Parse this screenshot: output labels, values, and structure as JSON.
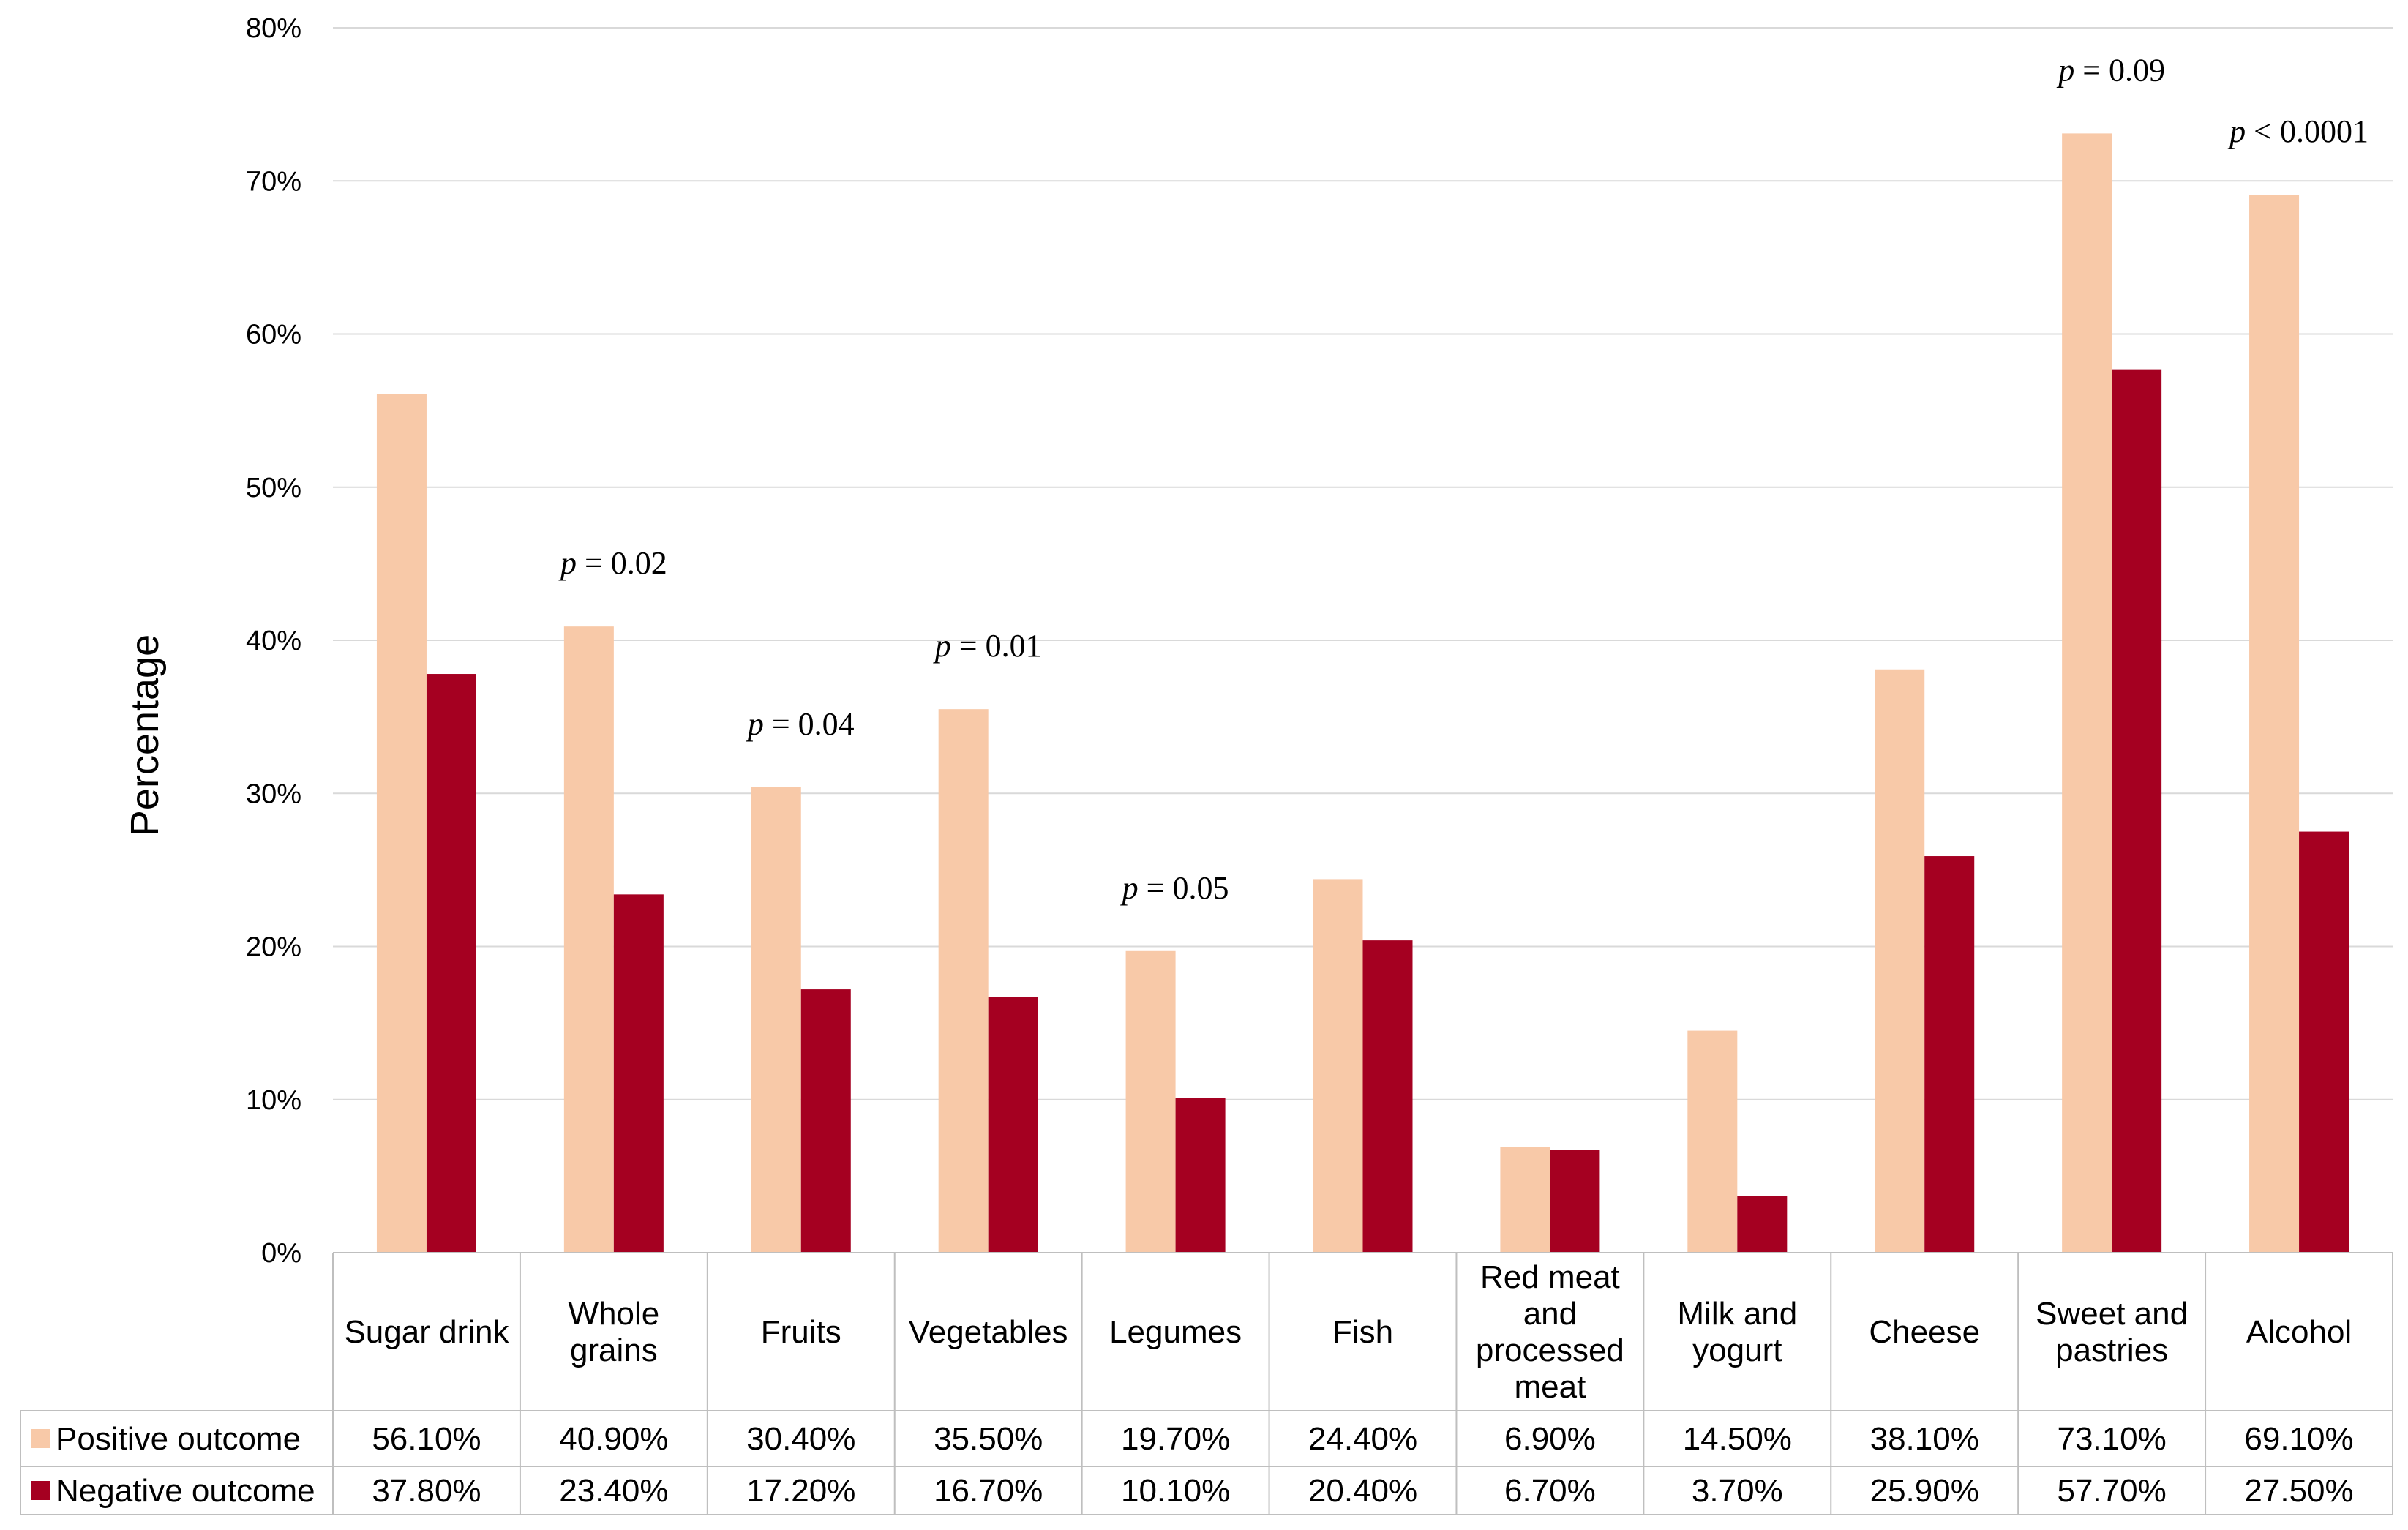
{
  "chart_data": {
    "type": "bar",
    "ylabel": "Percentage",
    "xlabel": "",
    "ylim": [
      0,
      80
    ],
    "y_ticks": [
      "0%",
      "10%",
      "20%",
      "30%",
      "40%",
      "50%",
      "60%",
      "70%",
      "80%"
    ],
    "grid": true,
    "categories": [
      [
        "Sugar drink"
      ],
      [
        "Whole",
        "grains"
      ],
      [
        "Fruits"
      ],
      [
        "Vegetables"
      ],
      [
        "Legumes"
      ],
      [
        "Fish"
      ],
      [
        "Red meat",
        "and",
        "processed",
        "meat"
      ],
      [
        "Milk and",
        "yogurt"
      ],
      [
        "Cheese"
      ],
      [
        "Sweet and",
        "pastries"
      ],
      [
        "Alcohol"
      ]
    ],
    "series": [
      {
        "name": "Positive outcome",
        "color": "#f8c9a8",
        "values": [
          56.1,
          40.9,
          30.4,
          35.5,
          19.7,
          24.4,
          6.9,
          14.5,
          38.1,
          73.1,
          69.1
        ],
        "labels": [
          "56.10%",
          "40.90%",
          "30.40%",
          "35.50%",
          "19.70%",
          "24.40%",
          "6.90%",
          "14.50%",
          "38.10%",
          "73.10%",
          "69.10%"
        ]
      },
      {
        "name": "Negative outcome",
        "color": "#a50021",
        "values": [
          37.8,
          23.4,
          17.2,
          16.7,
          10.1,
          20.4,
          6.7,
          3.7,
          25.9,
          57.7,
          27.5
        ],
        "labels": [
          "37.80%",
          "23.40%",
          "17.20%",
          "16.70%",
          "10.10%",
          "20.40%",
          "6.70%",
          "3.70%",
          "25.90%",
          "57.70%",
          "27.50%"
        ]
      }
    ],
    "annotations": [
      {
        "category_index": 1,
        "p": "p",
        "text": " = 0.02"
      },
      {
        "category_index": 2,
        "p": "p",
        "text": " = 0.04"
      },
      {
        "category_index": 3,
        "p": "p",
        "text": " = 0.01"
      },
      {
        "category_index": 4,
        "p": "p",
        "text": " = 0.05"
      },
      {
        "category_index": 9,
        "p": "p",
        "text": " = 0.09"
      },
      {
        "category_index": 10,
        "p": "p",
        "text": " < 0.0001"
      }
    ]
  }
}
